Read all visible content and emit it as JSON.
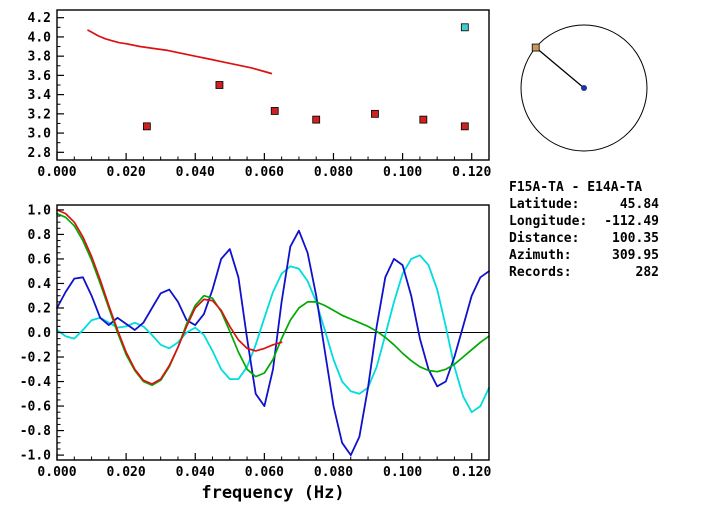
{
  "figure": {
    "background": "#ffffff"
  },
  "station_info": {
    "title": "F15A-TA - E14A-TA",
    "rows": [
      {
        "label": "Latitude:",
        "value": "45.84"
      },
      {
        "label": "Longitude:",
        "value": "-112.49"
      },
      {
        "label": "Distance:",
        "value": "100.35"
      },
      {
        "label": "Azimuth:",
        "value": "309.95"
      },
      {
        "label": "Records:",
        "value": "282"
      }
    ]
  },
  "chart_data": [
    {
      "id": "top",
      "type": "scatter",
      "title": "",
      "xlabel": "",
      "ylabel": "",
      "xlim": [
        0,
        0.125
      ],
      "ylim": [
        2.72,
        4.28
      ],
      "grid": false,
      "zero_line": false,
      "xminor_step": 0.005,
      "yminor_step": 0.1,
      "xtick_values": [
        0,
        0.02,
        0.04,
        0.06,
        0.08,
        0.1,
        0.12
      ],
      "xtick_labels": [
        "0.000",
        "0.020",
        "0.040",
        "0.060",
        "0.080",
        "0.100",
        "0.120"
      ],
      "ytick_values": [
        2.8,
        3.0,
        3.2,
        3.4,
        3.6,
        3.8,
        4.0,
        4.2
      ],
      "ytick_labels": [
        "2.8",
        "3.0",
        "3.2",
        "3.4",
        "3.6",
        "3.8",
        "4.0",
        "4.2"
      ],
      "series": [
        {
          "name": "reference-dispersion-curve",
          "color": "#dd1111",
          "width": 1.7,
          "x": [
            0.009,
            0.01,
            0.012,
            0.014,
            0.016,
            0.018,
            0.02,
            0.024,
            0.028,
            0.032,
            0.036,
            0.04,
            0.044,
            0.048,
            0.052,
            0.056,
            0.06,
            0.062
          ],
          "y": [
            4.07,
            4.05,
            4.01,
            3.98,
            3.96,
            3.94,
            3.93,
            3.9,
            3.88,
            3.86,
            3.83,
            3.8,
            3.77,
            3.74,
            3.71,
            3.68,
            3.64,
            3.62
          ]
        }
      ],
      "markers": [
        {
          "name": "measured-velocity-point",
          "shape": "square",
          "color": "#cc2222",
          "size": 7,
          "x": [
            0.026,
            0.047,
            0.063,
            0.075,
            0.092,
            0.106,
            0.118
          ],
          "y": [
            3.07,
            3.5,
            3.23,
            3.14,
            3.2,
            3.14,
            3.07
          ]
        },
        {
          "name": "selected-velocity-point",
          "shape": "square",
          "color": "#44cccc",
          "size": 7,
          "x": [
            0.118
          ],
          "y": [
            4.1
          ]
        }
      ]
    },
    {
      "id": "bottom",
      "type": "line",
      "title": "",
      "xlabel": "frequency (Hz)",
      "ylabel": "",
      "xlim": [
        0,
        0.125
      ],
      "ylim": [
        -1.04,
        1.04
      ],
      "grid": false,
      "zero_line": true,
      "xminor_step": 0.005,
      "yminor_step": 0.05,
      "xtick_values": [
        0,
        0.02,
        0.04,
        0.06,
        0.08,
        0.1,
        0.12
      ],
      "xtick_labels": [
        "0.000",
        "0.020",
        "0.040",
        "0.060",
        "0.080",
        "0.100",
        "0.120"
      ],
      "ytick_values": [
        -1.0,
        -0.8,
        -0.6,
        -0.4,
        -0.2,
        0.0,
        0.2,
        0.4,
        0.6,
        0.8,
        1.0
      ],
      "ytick_labels": [
        "-1.0",
        "-0.8",
        "-0.6",
        "-0.4",
        "-0.2",
        "0.0",
        "0.2",
        "0.4",
        "0.6",
        "0.8",
        "1.0"
      ],
      "series": [
        {
          "name": "cross-correlation-cyan",
          "color": "#00dddd",
          "width": 1.8,
          "x": [
            0,
            0.0025,
            0.005,
            0.0075,
            0.01,
            0.0125,
            0.015,
            0.0175,
            0.02,
            0.0225,
            0.025,
            0.0275,
            0.03,
            0.0325,
            0.035,
            0.0375,
            0.04,
            0.0425,
            0.045,
            0.0475,
            0.05,
            0.0525,
            0.055,
            0.0575,
            0.06,
            0.0625,
            0.065,
            0.0675,
            0.07,
            0.0725,
            0.075,
            0.0775,
            0.08,
            0.0825,
            0.085,
            0.0875,
            0.09,
            0.0925,
            0.095,
            0.0975,
            0.1,
            0.1025,
            0.105,
            0.1075,
            0.11,
            0.1125,
            0.115,
            0.1175,
            0.12,
            0.1225,
            0.125
          ],
          "y": [
            0.02,
            -0.03,
            -0.05,
            0.02,
            0.1,
            0.12,
            0.08,
            0.04,
            0.05,
            0.08,
            0.05,
            -0.02,
            -0.1,
            -0.13,
            -0.08,
            0.0,
            0.04,
            -0.02,
            -0.15,
            -0.3,
            -0.38,
            -0.38,
            -0.28,
            -0.1,
            0.12,
            0.33,
            0.48,
            0.54,
            0.52,
            0.42,
            0.25,
            0.02,
            -0.22,
            -0.4,
            -0.48,
            -0.5,
            -0.45,
            -0.28,
            -0.02,
            0.25,
            0.48,
            0.6,
            0.63,
            0.55,
            0.35,
            0.05,
            -0.28,
            -0.52,
            -0.65,
            -0.6,
            -0.45
          ]
        },
        {
          "name": "cross-correlation-blue",
          "color": "#1111cc",
          "width": 1.8,
          "x": [
            0,
            0.0025,
            0.005,
            0.0075,
            0.01,
            0.0125,
            0.015,
            0.0175,
            0.02,
            0.0225,
            0.025,
            0.0275,
            0.03,
            0.0325,
            0.035,
            0.0375,
            0.04,
            0.0425,
            0.045,
            0.0475,
            0.05,
            0.0525,
            0.055,
            0.0575,
            0.06,
            0.0625,
            0.065,
            0.0675,
            0.07,
            0.0725,
            0.075,
            0.0775,
            0.08,
            0.0825,
            0.085,
            0.0875,
            0.09,
            0.0925,
            0.095,
            0.0975,
            0.1,
            0.1025,
            0.105,
            0.1075,
            0.11,
            0.1125,
            0.115,
            0.1175,
            0.12,
            0.1225,
            0.125
          ],
          "y": [
            0.2,
            0.33,
            0.44,
            0.45,
            0.3,
            0.12,
            0.06,
            0.12,
            0.07,
            0.02,
            0.08,
            0.2,
            0.32,
            0.35,
            0.25,
            0.1,
            0.06,
            0.15,
            0.35,
            0.6,
            0.68,
            0.45,
            -0.05,
            -0.5,
            -0.6,
            -0.3,
            0.25,
            0.7,
            0.83,
            0.65,
            0.3,
            -0.15,
            -0.6,
            -0.9,
            -1.0,
            -0.85,
            -0.45,
            0.05,
            0.45,
            0.6,
            0.55,
            0.3,
            -0.05,
            -0.3,
            -0.44,
            -0.4,
            -0.2,
            0.05,
            0.3,
            0.45,
            0.5
          ]
        },
        {
          "name": "smoothed-correlation-green",
          "color": "#00aa00",
          "width": 1.7,
          "x": [
            0,
            0.0025,
            0.005,
            0.0075,
            0.01,
            0.0125,
            0.015,
            0.0175,
            0.02,
            0.0225,
            0.025,
            0.0275,
            0.03,
            0.0325,
            0.035,
            0.0375,
            0.04,
            0.0425,
            0.045,
            0.0475,
            0.05,
            0.0525,
            0.055,
            0.0575,
            0.06,
            0.0625,
            0.065,
            0.0675,
            0.07,
            0.0725,
            0.075,
            0.0775,
            0.08,
            0.0825,
            0.085,
            0.0875,
            0.09,
            0.0925,
            0.095,
            0.0975,
            0.1,
            0.1025,
            0.105,
            0.1075,
            0.11,
            0.1125,
            0.115,
            0.1175,
            0.12,
            0.1225,
            0.125
          ],
          "y": [
            0.97,
            0.94,
            0.87,
            0.75,
            0.59,
            0.4,
            0.2,
            0.0,
            -0.18,
            -0.31,
            -0.4,
            -0.43,
            -0.39,
            -0.28,
            -0.12,
            0.07,
            0.22,
            0.3,
            0.28,
            0.17,
            0.01,
            -0.16,
            -0.3,
            -0.36,
            -0.33,
            -0.22,
            -0.05,
            0.1,
            0.2,
            0.25,
            0.25,
            0.22,
            0.18,
            0.14,
            0.11,
            0.08,
            0.05,
            0.01,
            -0.04,
            -0.1,
            -0.17,
            -0.23,
            -0.28,
            -0.31,
            -0.32,
            -0.3,
            -0.26,
            -0.2,
            -0.14,
            -0.08,
            -0.03
          ]
        },
        {
          "name": "model-correlation-red",
          "color": "#dd1111",
          "width": 1.7,
          "x": [
            0,
            0.0025,
            0.005,
            0.0075,
            0.01,
            0.0125,
            0.015,
            0.0175,
            0.02,
            0.0225,
            0.025,
            0.0275,
            0.03,
            0.0325,
            0.035,
            0.0375,
            0.04,
            0.0425,
            0.045,
            0.0475,
            0.05,
            0.0525,
            0.055,
            0.0575,
            0.06,
            0.0625,
            0.065
          ],
          "y": [
            1.0,
            0.97,
            0.9,
            0.78,
            0.62,
            0.43,
            0.22,
            0.02,
            -0.16,
            -0.3,
            -0.39,
            -0.42,
            -0.38,
            -0.27,
            -0.12,
            0.05,
            0.2,
            0.27,
            0.26,
            0.18,
            0.05,
            -0.06,
            -0.13,
            -0.15,
            -0.13,
            -0.1,
            -0.08
          ]
        }
      ],
      "markers": []
    },
    {
      "id": "circle",
      "type": "azimuth-diagram",
      "azimuth_deg": 309.95,
      "circle_color": "#000000",
      "line_color": "#000000",
      "station_marker_color": "#c89858",
      "center_dot_color": "#223399"
    }
  ]
}
